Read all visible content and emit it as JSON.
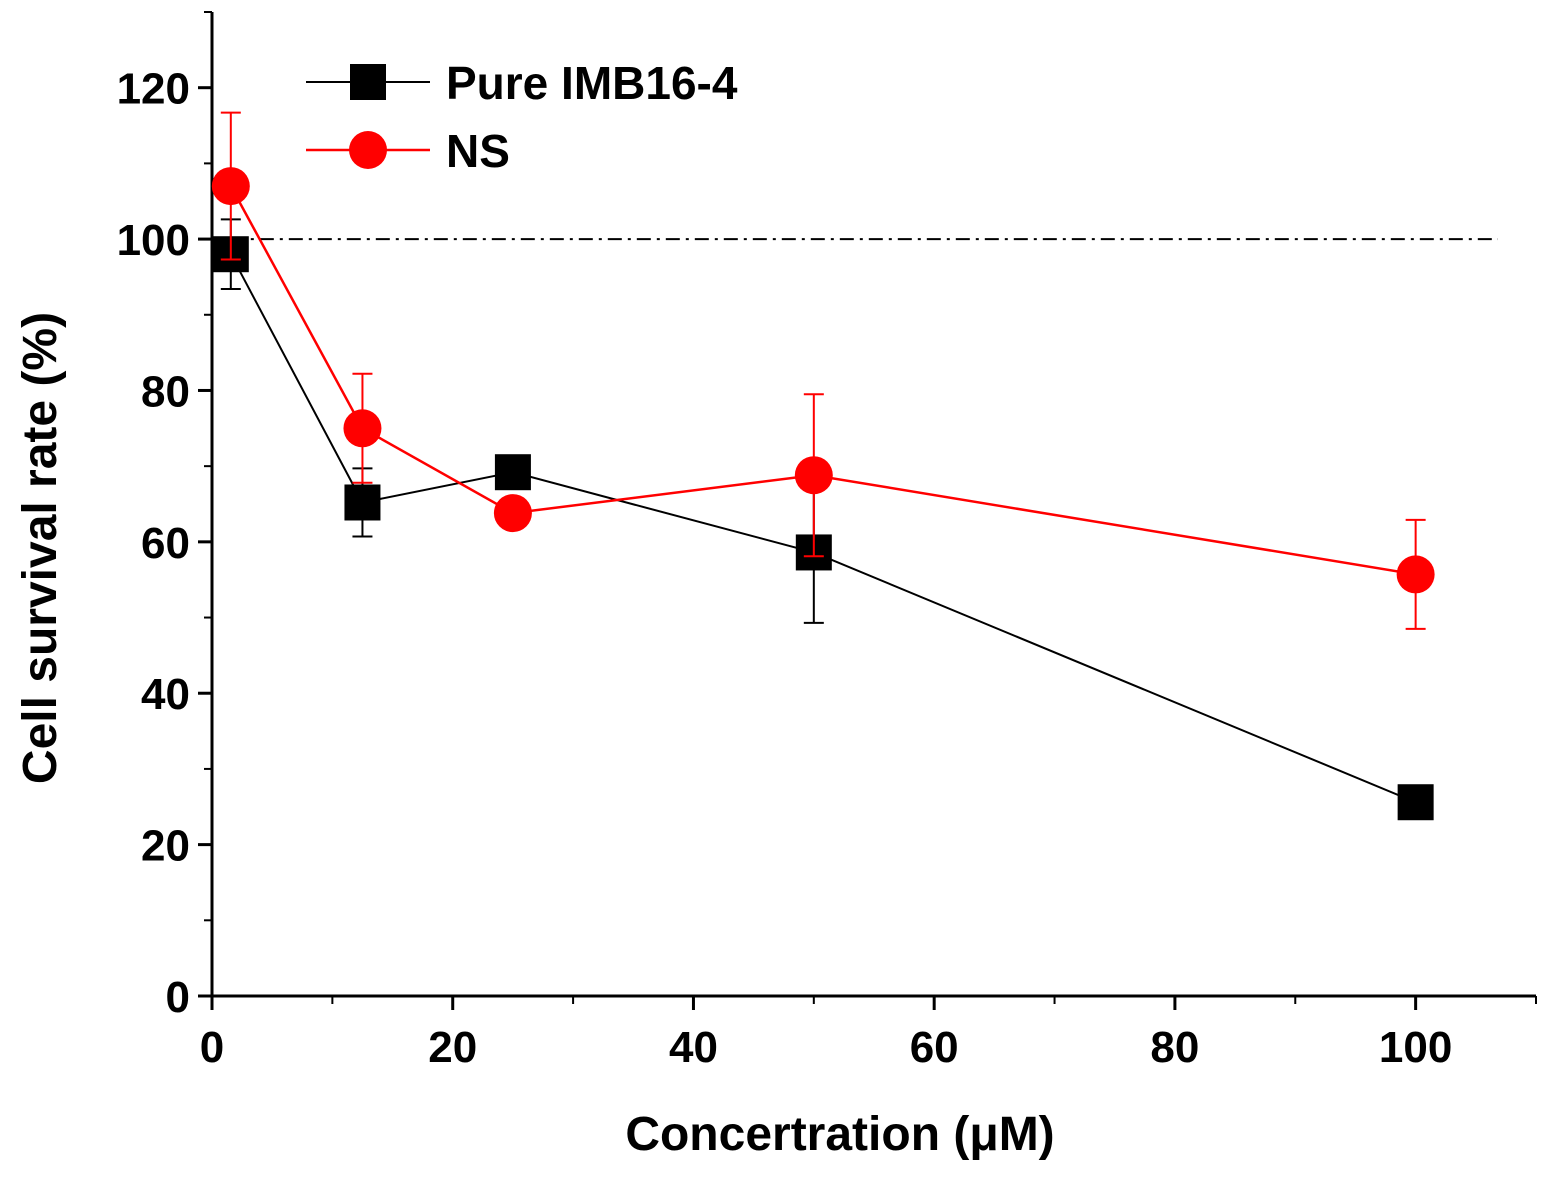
{
  "chart_data": {
    "type": "line",
    "title": "",
    "xlabel": "Concertration (μM)",
    "ylabel": "Cell survival rate (%)",
    "xlim": [
      0,
      110
    ],
    "ylim": [
      0,
      130
    ],
    "xticks": [
      0,
      20,
      40,
      60,
      80,
      100
    ],
    "yticks": [
      0,
      20,
      40,
      60,
      80,
      100,
      120
    ],
    "xtick_labels": [
      "0",
      "20",
      "40",
      "60",
      "80",
      "100"
    ],
    "ytick_labels": [
      "0",
      "20",
      "40",
      "60",
      "80",
      "100",
      "120"
    ],
    "x_minor_ticks": [
      10,
      30,
      50,
      70,
      90,
      110
    ],
    "y_minor_ticks": [
      10,
      30,
      50,
      70,
      90,
      110,
      130
    ],
    "reference_line": {
      "y": 100,
      "style": "dash-dot"
    },
    "legend_position": "top-left",
    "series": [
      {
        "name": "Pure IMB16-4",
        "marker": "square",
        "color": "#000000",
        "x": [
          1.5625,
          12.5,
          25,
          50,
          100
        ],
        "y": [
          98.0,
          65.2,
          69.2,
          58.6,
          25.6
        ],
        "err": [
          4.6,
          4.5,
          0,
          9.3,
          0
        ]
      },
      {
        "name": "NS",
        "marker": "circle",
        "color": "#ff0000",
        "x": [
          1.5625,
          12.5,
          25,
          50,
          100
        ],
        "y": [
          107.0,
          75.0,
          63.8,
          68.8,
          55.7
        ],
        "err": [
          9.7,
          7.2,
          0,
          10.7,
          7.2
        ]
      }
    ]
  }
}
